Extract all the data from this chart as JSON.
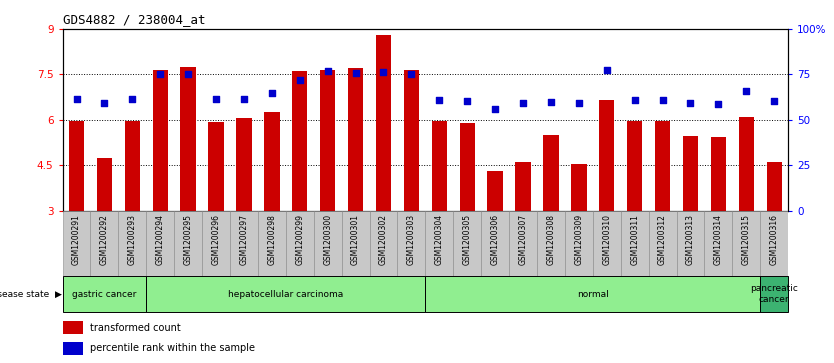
{
  "title": "GDS4882 / 238004_at",
  "samples": [
    "GSM1200291",
    "GSM1200292",
    "GSM1200293",
    "GSM1200294",
    "GSM1200295",
    "GSM1200296",
    "GSM1200297",
    "GSM1200298",
    "GSM1200299",
    "GSM1200300",
    "GSM1200301",
    "GSM1200302",
    "GSM1200303",
    "GSM1200304",
    "GSM1200305",
    "GSM1200306",
    "GSM1200307",
    "GSM1200308",
    "GSM1200309",
    "GSM1200310",
    "GSM1200311",
    "GSM1200312",
    "GSM1200313",
    "GSM1200314",
    "GSM1200315",
    "GSM1200316"
  ],
  "bar_values": [
    5.95,
    4.75,
    5.97,
    7.65,
    7.75,
    5.92,
    6.05,
    6.25,
    7.6,
    7.65,
    7.7,
    8.8,
    7.65,
    5.95,
    5.9,
    4.3,
    4.6,
    5.5,
    4.55,
    6.65,
    5.95,
    5.95,
    5.45,
    5.42,
    6.1,
    4.6
  ],
  "percentile_values": [
    6.7,
    6.55,
    6.7,
    7.52,
    7.52,
    6.7,
    6.7,
    6.9,
    7.3,
    7.6,
    7.55,
    7.58,
    7.52,
    6.65,
    6.62,
    6.35,
    6.55,
    6.6,
    6.55,
    7.65,
    6.65,
    6.65,
    6.55,
    6.52,
    6.95,
    6.62
  ],
  "ylim": [
    3,
    9
  ],
  "yticks": [
    3,
    4.5,
    6,
    7.5,
    9
  ],
  "ytick_labels": [
    "3",
    "4.5",
    "6",
    "7.5",
    "9"
  ],
  "right_yticks": [
    0,
    25,
    50,
    75,
    100
  ],
  "right_ytick_labels": [
    "0",
    "25",
    "50",
    "75",
    "100%"
  ],
  "bar_color": "#CC0000",
  "percentile_color": "#0000CC",
  "groups": [
    {
      "label": "gastric cancer",
      "start": 0,
      "end": 2,
      "color": "#90EE90"
    },
    {
      "label": "hepatocellular carcinoma",
      "start": 3,
      "end": 12,
      "color": "#90EE90"
    },
    {
      "label": "normal",
      "start": 13,
      "end": 24,
      "color": "#90EE90"
    },
    {
      "label": "pancreatic\ncancer",
      "start": 25,
      "end": 25,
      "color": "#3CB371"
    }
  ]
}
